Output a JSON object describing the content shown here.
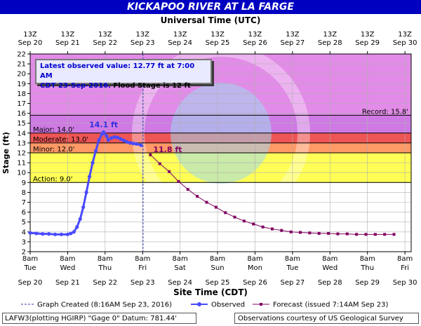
{
  "chart_data": {
    "type": "line",
    "title": "KICKAPOO RIVER AT LA FARGE",
    "top_axis_title": "Universal Time (UTC)",
    "xlabel": "Site Time (CDT)",
    "ylabel": "Stage (ft)",
    "ylim": [
      2,
      22
    ],
    "yticks": [
      2,
      3,
      4,
      5,
      6,
      7,
      8,
      9,
      10,
      11,
      12,
      13,
      14,
      15,
      16,
      17,
      18,
      19,
      20,
      21,
      22
    ],
    "xlim": [
      "2016-09-20 08:00",
      "2016-09-30 12:00"
    ],
    "top_ticks": [
      {
        "time": "13Z",
        "date": "Sep 20"
      },
      {
        "time": "13Z",
        "date": "Sep 21"
      },
      {
        "time": "13Z",
        "date": "Sep 22"
      },
      {
        "time": "13Z",
        "date": "Sep 23"
      },
      {
        "time": "13Z",
        "date": "Sep 24"
      },
      {
        "time": "13Z",
        "date": "Sep 25"
      },
      {
        "time": "13Z",
        "date": "Sep 26"
      },
      {
        "time": "13Z",
        "date": "Sep 27"
      },
      {
        "time": "13Z",
        "date": "Sep 28"
      },
      {
        "time": "13Z",
        "date": "Sep 29"
      },
      {
        "time": "13Z",
        "date": "Sep 30"
      }
    ],
    "bottom_ticks": [
      {
        "time": "8am",
        "day": "Tue",
        "date": "Sep 20"
      },
      {
        "time": "8am",
        "day": "Wed",
        "date": "Sep 21"
      },
      {
        "time": "8am",
        "day": "Thu",
        "date": "Sep 22"
      },
      {
        "time": "8am",
        "day": "Fri",
        "date": "Sep 23"
      },
      {
        "time": "8am",
        "day": "Sat",
        "date": "Sep 24"
      },
      {
        "time": "8am",
        "day": "Sun",
        "date": "Sep 25"
      },
      {
        "time": "8am",
        "day": "Mon",
        "date": "Sep 26"
      },
      {
        "time": "8am",
        "day": "Tue",
        "date": "Sep 27"
      },
      {
        "time": "8am",
        "day": "Wed",
        "date": "Sep 28"
      },
      {
        "time": "8am",
        "day": "Thu",
        "date": "Sep 29"
      },
      {
        "time": "8am",
        "day": "Fri",
        "date": "Sep 30"
      }
    ],
    "bands": [
      {
        "label": "Record: 15.8'",
        "from": 15.8,
        "to": 22,
        "color": "#e28be8",
        "label_side": "right"
      },
      {
        "label": "Major: 14.0'",
        "from": 14.0,
        "to": 15.8,
        "color": "#cf7ae4",
        "label_side": "left"
      },
      {
        "label": "Moderate: 13.0'",
        "from": 13.0,
        "to": 14.0,
        "color": "#ee5555",
        "label_side": "left"
      },
      {
        "label": "Minor: 12.0'",
        "from": 12.0,
        "to": 13.0,
        "color": "#ff9966",
        "label_side": "left"
      },
      {
        "label": "Action: 9.0'",
        "from": 9.0,
        "to": 12.0,
        "color": "#ffff55",
        "label_side": "left"
      }
    ],
    "graph_created": "2016-09-23 08:16",
    "series": [
      {
        "name": "Observed",
        "color": "#4a4aff",
        "points": [
          [
            "2016-09-20 08:00",
            3.9
          ],
          [
            "2016-09-20 12:00",
            3.85
          ],
          [
            "2016-09-20 16:00",
            3.8
          ],
          [
            "2016-09-20 20:00",
            3.8
          ],
          [
            "2016-09-21 00:00",
            3.75
          ],
          [
            "2016-09-21 04:00",
            3.75
          ],
          [
            "2016-09-21 08:00",
            3.75
          ],
          [
            "2016-09-21 10:00",
            3.85
          ],
          [
            "2016-09-21 12:00",
            4.0
          ],
          [
            "2016-09-21 14:00",
            4.5
          ],
          [
            "2016-09-21 16:00",
            5.3
          ],
          [
            "2016-09-21 18:00",
            6.5
          ],
          [
            "2016-09-21 20:00",
            8.0
          ],
          [
            "2016-09-21 22:00",
            9.6
          ],
          [
            "2016-09-22 00:00",
            11.0
          ],
          [
            "2016-09-22 02:00",
            12.2
          ],
          [
            "2016-09-22 04:00",
            13.3
          ],
          [
            "2016-09-22 06:00",
            13.9
          ],
          [
            "2016-09-22 07:00",
            14.1
          ],
          [
            "2016-09-22 09:00",
            13.7
          ],
          [
            "2016-09-22 10:00",
            13.3
          ],
          [
            "2016-09-22 12:00",
            13.5
          ],
          [
            "2016-09-22 14:00",
            13.6
          ],
          [
            "2016-09-22 16:00",
            13.55
          ],
          [
            "2016-09-22 18:00",
            13.4
          ],
          [
            "2016-09-22 20:00",
            13.25
          ],
          [
            "2016-09-22 22:00",
            13.1
          ],
          [
            "2016-09-23 00:00",
            13.0
          ],
          [
            "2016-09-23 02:00",
            12.95
          ],
          [
            "2016-09-23 04:00",
            12.9
          ],
          [
            "2016-09-23 07:00",
            12.77
          ]
        ]
      },
      {
        "name": "Forecast (issued 7:14AM Sep 23)",
        "color": "#800060",
        "points": [
          [
            "2016-09-23 13:00",
            11.8
          ],
          [
            "2016-09-23 19:00",
            10.9
          ],
          [
            "2016-09-24 01:00",
            10.1
          ],
          [
            "2016-09-24 07:00",
            9.1
          ],
          [
            "2016-09-24 13:00",
            8.3
          ],
          [
            "2016-09-24 19:00",
            7.6
          ],
          [
            "2016-09-25 01:00",
            7.0
          ],
          [
            "2016-09-25 07:00",
            6.5
          ],
          [
            "2016-09-25 13:00",
            5.95
          ],
          [
            "2016-09-25 19:00",
            5.5
          ],
          [
            "2016-09-26 01:00",
            5.1
          ],
          [
            "2016-09-26 07:00",
            4.8
          ],
          [
            "2016-09-26 13:00",
            4.5
          ],
          [
            "2016-09-26 19:00",
            4.3
          ],
          [
            "2016-09-27 01:00",
            4.15
          ],
          [
            "2016-09-27 07:00",
            4.0
          ],
          [
            "2016-09-27 13:00",
            3.95
          ],
          [
            "2016-09-27 19:00",
            3.9
          ],
          [
            "2016-09-28 01:00",
            3.85
          ],
          [
            "2016-09-28 07:00",
            3.85
          ],
          [
            "2016-09-28 13:00",
            3.8
          ],
          [
            "2016-09-28 19:00",
            3.8
          ],
          [
            "2016-09-29 01:00",
            3.75
          ],
          [
            "2016-09-29 07:00",
            3.75
          ],
          [
            "2016-09-29 13:00",
            3.75
          ],
          [
            "2016-09-29 19:00",
            3.75
          ],
          [
            "2016-09-30 01:00",
            3.75
          ]
        ]
      }
    ],
    "peak_label": "14.1 ft",
    "forecast_label": "11.8 ft",
    "info_line1": "Latest observed value: 12.77 ft at 7:00 AM",
    "info_line2_blue": "CDT 23-Sep-2016.",
    "info_line2_black": " Flood Stage is 12 ft",
    "legend": {
      "graph_created": "Graph Created (8:16AM Sep 23, 2016)",
      "observed": "Observed",
      "forecast": "Forecast (issued 7:14AM Sep 23)"
    },
    "footer_left": "LAFW3(plotting HGIRP) \"Gage 0\" Datum: 781.44'",
    "footer_right": "Observations courtesy of US Geological Survey"
  }
}
